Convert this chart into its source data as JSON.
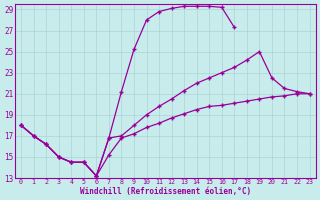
{
  "bg_color": "#c8ecec",
  "grid_color": "#aad4d4",
  "line_color": "#990099",
  "marker": "+",
  "xlabel": "Windchill (Refroidissement éolien,°C)",
  "ylim": [
    13,
    29.5
  ],
  "xlim": [
    -0.5,
    23.5
  ],
  "yticks": [
    13,
    15,
    17,
    19,
    21,
    23,
    25,
    27,
    29
  ],
  "xticks": [
    0,
    1,
    2,
    3,
    4,
    5,
    6,
    7,
    8,
    9,
    10,
    11,
    12,
    13,
    14,
    15,
    16,
    17,
    18,
    19,
    20,
    21,
    22,
    23
  ],
  "line1_x": [
    0,
    1,
    2,
    3,
    4,
    5,
    6,
    7,
    8,
    9,
    10,
    11,
    12,
    13,
    14,
    15,
    16,
    17
  ],
  "line1_y": [
    18.0,
    17.0,
    16.2,
    15.0,
    14.5,
    14.5,
    13.2,
    16.8,
    21.2,
    25.2,
    28.0,
    28.8,
    29.1,
    29.3,
    29.3,
    29.3,
    29.2,
    27.3
  ],
  "line2_x": [
    0,
    1,
    2,
    3,
    4,
    5,
    6,
    7,
    8,
    9,
    10,
    11,
    12,
    13,
    14,
    15,
    16,
    17,
    18,
    19,
    20,
    21,
    22,
    23
  ],
  "line2_y": [
    18.0,
    17.0,
    16.2,
    15.0,
    14.5,
    14.5,
    13.2,
    16.8,
    17.0,
    18.0,
    19.0,
    19.8,
    20.5,
    21.3,
    22.0,
    22.5,
    23.0,
    23.5,
    24.2,
    25.0,
    22.5,
    21.5,
    21.2,
    21.0
  ],
  "line3_x": [
    0,
    1,
    2,
    3,
    4,
    5,
    6,
    7,
    8,
    9,
    10,
    11,
    12,
    13,
    14,
    15,
    16,
    17,
    18,
    19,
    20,
    21,
    22,
    23
  ],
  "line3_y": [
    18.0,
    17.0,
    16.2,
    15.0,
    14.5,
    14.5,
    13.2,
    15.2,
    16.8,
    17.2,
    17.8,
    18.2,
    18.7,
    19.1,
    19.5,
    19.8,
    19.9,
    20.1,
    20.3,
    20.5,
    20.7,
    20.8,
    21.0,
    21.0
  ]
}
